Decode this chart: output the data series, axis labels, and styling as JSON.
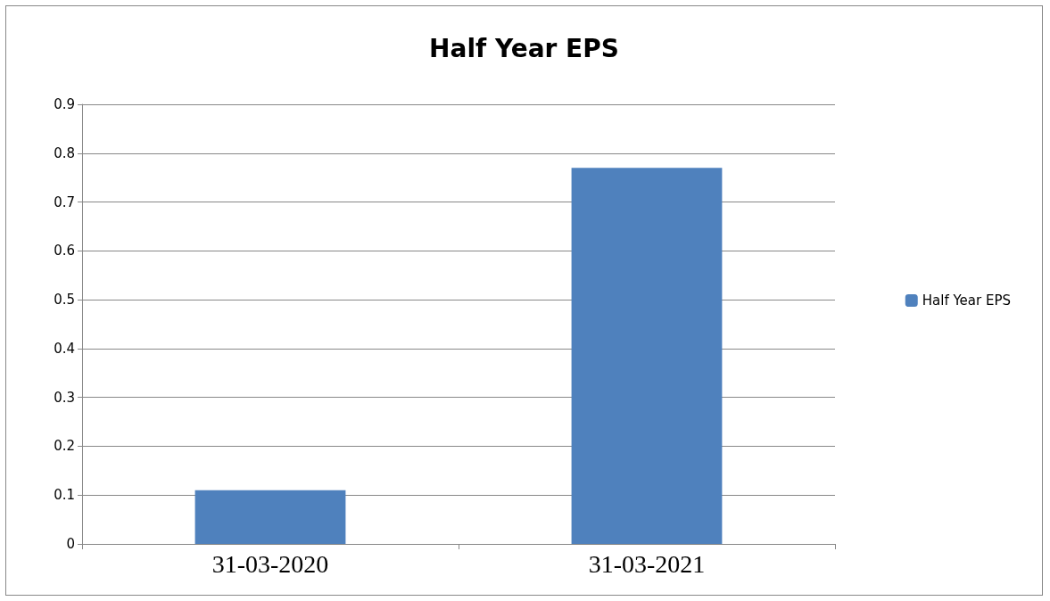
{
  "chart_data": {
    "type": "bar",
    "title": "Half Year EPS",
    "categories": [
      "31-03-2020",
      "31-03-2021"
    ],
    "series": [
      {
        "name": "Half Year EPS",
        "color": "#4f81bd",
        "values": [
          0.11,
          0.77
        ]
      }
    ],
    "ylim": [
      0,
      0.9
    ],
    "yticks": [
      0,
      0.1,
      0.2,
      0.3,
      0.4,
      0.5,
      0.6,
      0.7,
      0.8,
      0.9
    ],
    "grid": "y",
    "legend": "right"
  }
}
